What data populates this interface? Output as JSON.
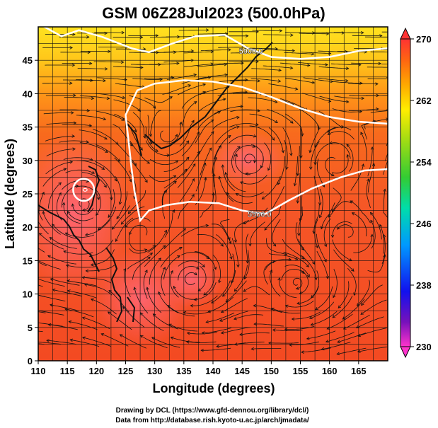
{
  "title": "GSM 06Z28Jul2023 (500.0hPa)",
  "x_axis": {
    "label": "Longitude (degrees)",
    "range": [
      110,
      170
    ],
    "ticks": [
      110,
      115,
      120,
      125,
      130,
      135,
      140,
      145,
      150,
      155,
      160,
      165
    ]
  },
  "y_axis": {
    "label": "Latitude  (degrees)",
    "range": [
      0,
      50
    ],
    "ticks": [
      0,
      5,
      10,
      15,
      20,
      25,
      30,
      35,
      40,
      45
    ]
  },
  "colorbar": {
    "range": [
      230,
      270
    ],
    "ticks": [
      270,
      262,
      254,
      246,
      238,
      230
    ],
    "colors": [
      "#ff33cc",
      "#5500aa",
      "#1111ee",
      "#00aaff",
      "#00ddaa",
      "#33cc33",
      "#99dd22",
      "#ffee00",
      "#ffaa00",
      "#ff7700",
      "#ff3322",
      "#ff4466"
    ]
  },
  "contours": [
    {
      "label": "5900.0",
      "points": [
        [
          110,
          50.5
        ],
        [
          114,
          48.6
        ],
        [
          117,
          49.5
        ],
        [
          121,
          48.5
        ],
        [
          126,
          46.8
        ],
        [
          129,
          46.2
        ],
        [
          133,
          47.5
        ],
        [
          137,
          48.6
        ],
        [
          142,
          48.8
        ],
        [
          146,
          46.8
        ],
        [
          150,
          45.5
        ],
        [
          155,
          45.2
        ],
        [
          160,
          45.5
        ],
        [
          165,
          46.4
        ],
        [
          170,
          46.8
        ]
      ],
      "label_at": [
        146.5,
        46.4
      ]
    },
    {
      "label": "5900.0",
      "points": [
        [
          170,
          35.5
        ],
        [
          165,
          35.8
        ],
        [
          160,
          36.5
        ],
        [
          155,
          37.8
        ],
        [
          150,
          39.5
        ],
        [
          145,
          41
        ],
        [
          140,
          41.8
        ],
        [
          135,
          42
        ],
        [
          130,
          41.5
        ],
        [
          127,
          40.5
        ],
        [
          125,
          36.8
        ],
        [
          125.5,
          33
        ],
        [
          126,
          29
        ],
        [
          126.5,
          25.5
        ],
        [
          127.5,
          21
        ],
        [
          129,
          22.5
        ],
        [
          132,
          23.3
        ],
        [
          136,
          23.8
        ],
        [
          141,
          23.6
        ],
        [
          145,
          22.5
        ],
        [
          149,
          22
        ],
        [
          153,
          24
        ],
        [
          157,
          25.8
        ],
        [
          162,
          27.5
        ],
        [
          166,
          28.5
        ],
        [
          170,
          28.7
        ]
      ],
      "label_at": [
        148,
        22
      ]
    }
  ],
  "small_contour": {
    "center": [
      117.8,
      25.6
    ],
    "radius": 1.8
  },
  "credits": {
    "line1": "Drawing by DCL (https://www.gfd-dennou.org/library/dcl/)",
    "line2": "Data from http://database.rish.kyoto-u.ac.jp/arch/jmadata/"
  },
  "colors": {
    "plot_base": "#f25a26",
    "north_warm": "#ffd21f",
    "mid_warm": "#ff9a1a",
    "west_pink": "#ff5c6a",
    "contour": "#ffffff",
    "streamline": "#111111",
    "grid": "#111111"
  }
}
